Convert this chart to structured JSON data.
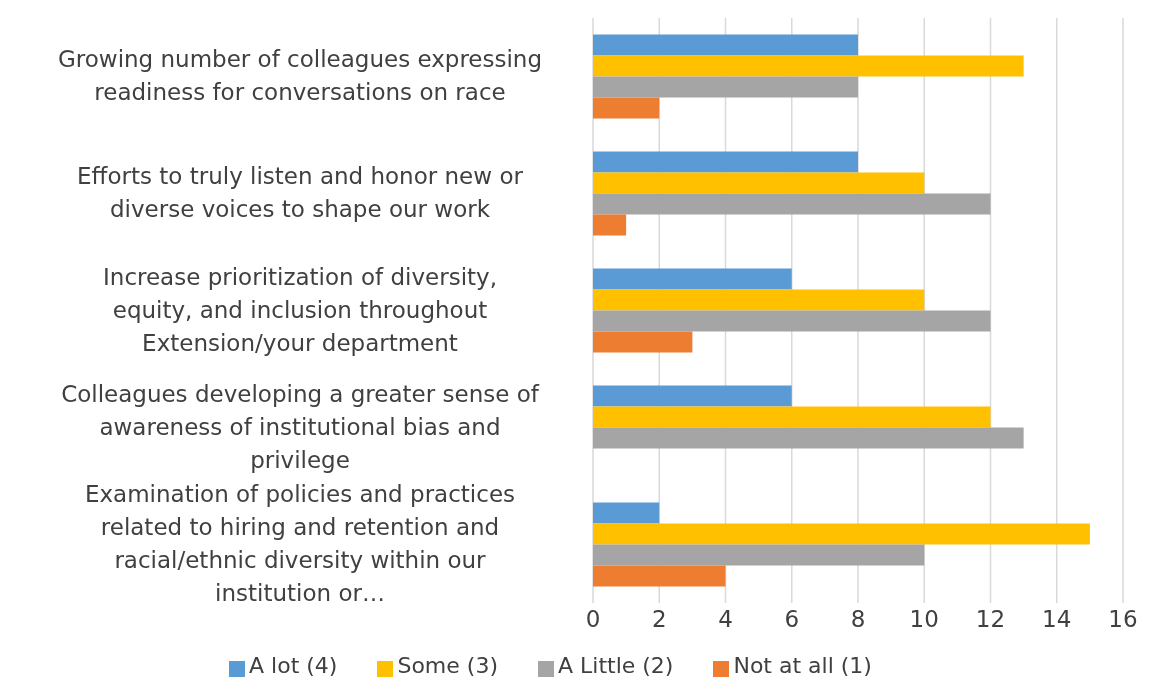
{
  "chart_data": {
    "type": "bar",
    "orientation": "horizontal",
    "categories": [
      "Growing number of colleagues expressing readiness for conversations on race",
      "Efforts to truly listen and honor new or diverse voices to shape our work",
      "Increase prioritization of diversity, equity, and inclusion throughout Extension/your department",
      "Colleagues developing a greater sense of awareness of institutional bias and privilege",
      "Examination of policies and practices related to hiring and retention and racial/ethnic diversity within our institution or…"
    ],
    "series": [
      {
        "name": "A lot (4)",
        "color": "#5b9bd5",
        "values": [
          8,
          8,
          6,
          6,
          2
        ]
      },
      {
        "name": "Some (3)",
        "color": "#ffc000",
        "values": [
          13,
          10,
          10,
          12,
          15
        ]
      },
      {
        "name": "A Little (2)",
        "color": "#a5a5a5",
        "values": [
          8,
          12,
          12,
          13,
          10
        ]
      },
      {
        "name": "Not at all (1)",
        "color": "#ed7d31",
        "values": [
          2,
          1,
          3,
          0,
          4
        ]
      }
    ],
    "xlim": [
      0,
      16
    ],
    "xticks": [
      0,
      2,
      4,
      6,
      8,
      10,
      12,
      14,
      16
    ],
    "grid": "x",
    "legend": "bottom"
  }
}
